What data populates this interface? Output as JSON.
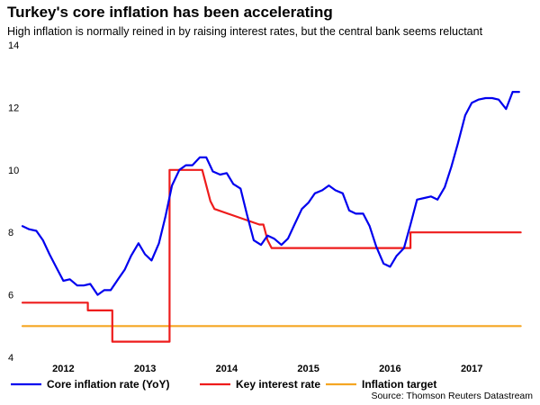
{
  "chart_data": {
    "type": "line",
    "title": "Turkey's core inflation has been accelerating",
    "subtitle": "High inflation is normally reined in by raising interest rates, but the central bank seems reluctant",
    "source": "Source: Thomson Reuters Datastream",
    "xlabel": "",
    "ylabel": "",
    "ylim": [
      4,
      14
    ],
    "xlim": [
      2011.75,
      2017.92
    ],
    "yticks": [
      4,
      6,
      8,
      10,
      12,
      14
    ],
    "xticks": [
      {
        "value": 2012.25,
        "label": "2012"
      },
      {
        "value": 2013.25,
        "label": "2013"
      },
      {
        "value": 2014.25,
        "label": "2014"
      },
      {
        "value": 2015.25,
        "label": "2015"
      },
      {
        "value": 2016.25,
        "label": "2016"
      },
      {
        "value": 2017.25,
        "label": "2017"
      }
    ],
    "legend_position": "bottom",
    "series": [
      {
        "name": "Core inflation rate (YoY)",
        "color": "#0000ee",
        "x": [
          2011.75,
          2011.83,
          2011.92,
          2012.0,
          2012.08,
          2012.17,
          2012.25,
          2012.33,
          2012.42,
          2012.5,
          2012.58,
          2012.67,
          2012.75,
          2012.83,
          2012.92,
          2013.0,
          2013.08,
          2013.17,
          2013.25,
          2013.33,
          2013.42,
          2013.5,
          2013.58,
          2013.67,
          2013.75,
          2013.83,
          2013.92,
          2014.0,
          2014.08,
          2014.17,
          2014.25,
          2014.33,
          2014.42,
          2014.5,
          2014.58,
          2014.67,
          2014.75,
          2014.83,
          2014.92,
          2015.0,
          2015.08,
          2015.17,
          2015.25,
          2015.33,
          2015.42,
          2015.5,
          2015.58,
          2015.67,
          2015.75,
          2015.83,
          2015.92,
          2016.0,
          2016.08,
          2016.17,
          2016.25,
          2016.33,
          2016.42,
          2016.5,
          2016.58,
          2016.67,
          2016.75,
          2016.83,
          2016.92,
          2017.0,
          2017.08,
          2017.17,
          2017.25,
          2017.33,
          2017.42,
          2017.5,
          2017.58,
          2017.67,
          2017.75,
          2017.83
        ],
        "values": [
          8.2,
          8.1,
          8.05,
          7.75,
          7.3,
          6.85,
          6.45,
          6.5,
          6.3,
          6.3,
          6.35,
          6.0,
          6.15,
          6.15,
          6.5,
          6.8,
          7.25,
          7.65,
          7.3,
          7.1,
          7.65,
          8.5,
          9.5,
          10.0,
          10.15,
          10.15,
          10.4,
          10.4,
          9.95,
          9.85,
          9.9,
          9.55,
          9.4,
          8.55,
          7.75,
          7.6,
          7.9,
          7.8,
          7.6,
          7.8,
          8.25,
          8.75,
          8.95,
          9.25,
          9.35,
          9.5,
          9.35,
          9.25,
          8.7,
          8.6,
          8.6,
          8.2,
          7.55,
          7.0,
          6.9,
          7.25,
          7.5,
          8.25,
          9.05,
          9.1,
          9.15,
          9.05,
          9.45,
          10.1,
          10.85,
          11.75,
          12.15,
          12.25,
          12.3,
          12.3,
          12.25,
          11.95,
          12.5,
          12.5
        ]
      },
      {
        "name": "Key interest rate",
        "color": "#ee1c1c",
        "x": [
          2011.75,
          2012.25,
          2012.25,
          2012.55,
          2012.55,
          2012.85,
          2012.85,
          2013.55,
          2013.55,
          2013.95,
          2014.05,
          2014.1,
          2014.65,
          2014.7,
          2014.75,
          2014.8,
          2016.3,
          2016.3,
          2016.5,
          2016.5,
          2017.85
        ],
        "values": [
          5.75,
          5.75,
          5.75,
          5.75,
          5.5,
          5.5,
          4.5,
          4.5,
          10.0,
          10.0,
          9.0,
          8.75,
          8.25,
          8.25,
          7.75,
          7.5,
          7.5,
          7.5,
          7.5,
          8.0,
          8.0
        ]
      },
      {
        "name": "Inflation target",
        "color": "#f5a623",
        "x": [
          2011.75,
          2017.85
        ],
        "values": [
          5.0,
          5.0
        ]
      }
    ]
  }
}
